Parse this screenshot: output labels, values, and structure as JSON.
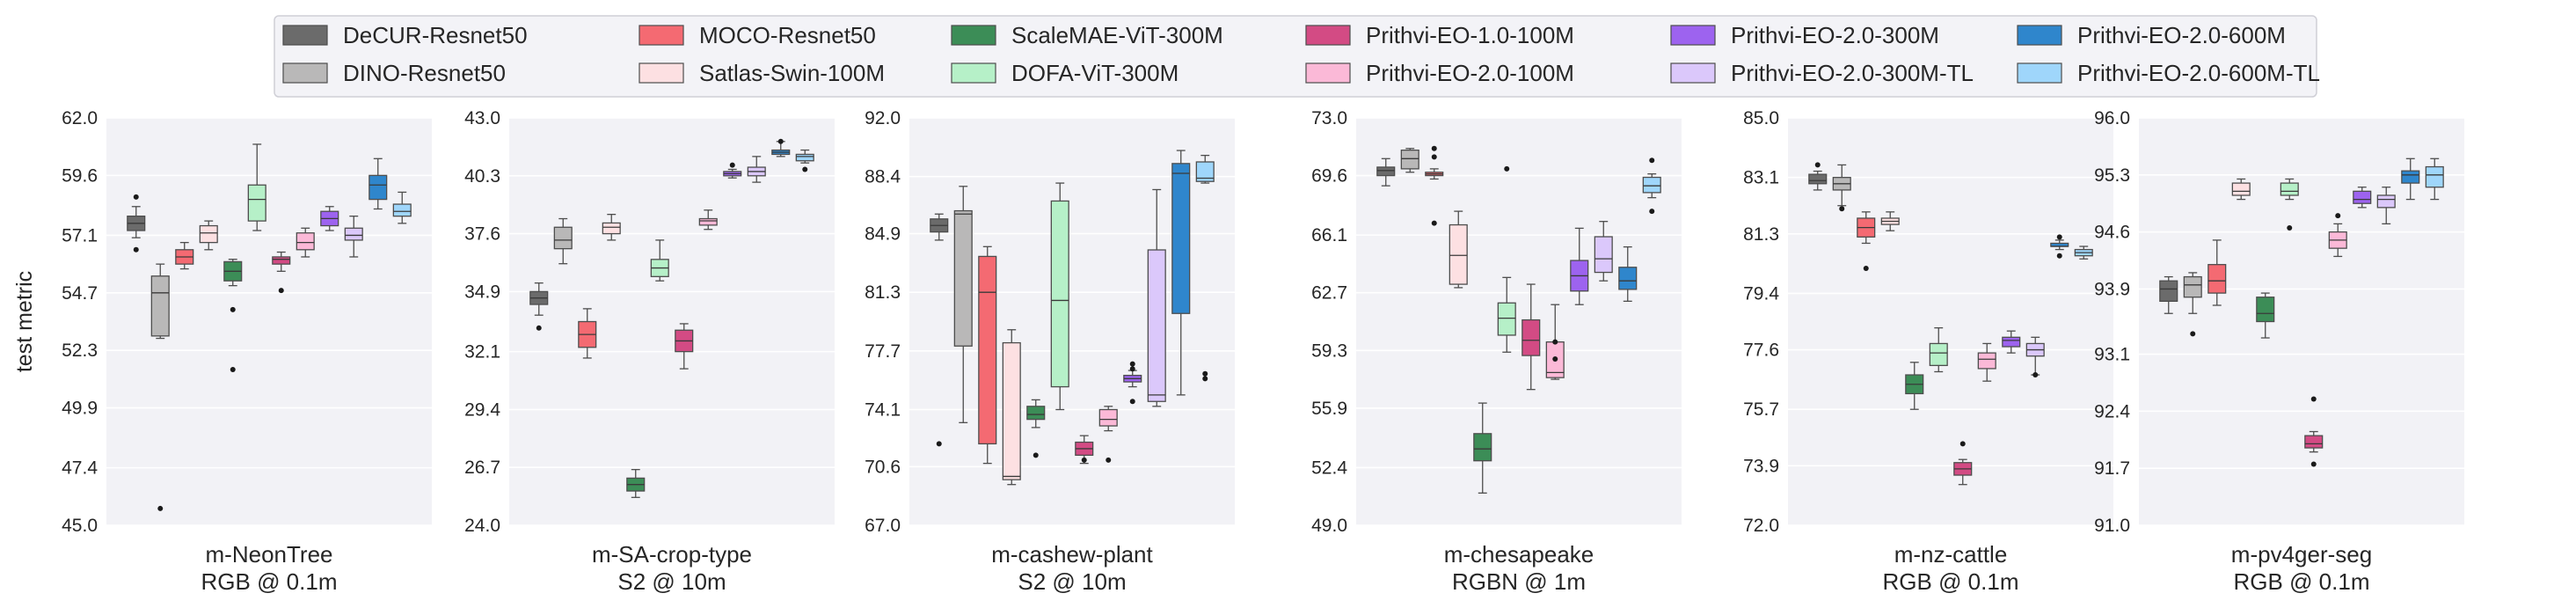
{
  "chart_data": {
    "type": "box",
    "ylabel": "test metric",
    "legend_position": "top-center",
    "series": [
      {
        "name": "DeCUR-Resnet50",
        "color": "#6b6b6b"
      },
      {
        "name": "DINO-Resnet50",
        "color": "#b9b8b8"
      },
      {
        "name": "MOCO-Resnet50",
        "color": "#f46a72"
      },
      {
        "name": "Satlas-Swin-100M",
        "color": "#fde0e2"
      },
      {
        "name": "ScaleMAE-ViT-300M",
        "color": "#3c8d57"
      },
      {
        "name": "DOFA-ViT-300M",
        "color": "#b6f0c8"
      },
      {
        "name": "Prithvi-EO-1.0-100M",
        "color": "#d34b84"
      },
      {
        "name": "Prithvi-EO-2.0-100M",
        "color": "#fbb9d7"
      },
      {
        "name": "Prithvi-EO-2.0-300M",
        "color": "#9d63ef"
      },
      {
        "name": "Prithvi-EO-2.0-300M-TL",
        "color": "#dbc8fb"
      },
      {
        "name": "Prithvi-EO-2.0-600M",
        "color": "#2f86cc"
      },
      {
        "name": "Prithvi-EO-2.0-600M-TL",
        "color": "#9fd6fb"
      }
    ],
    "panels": [
      {
        "title": "m-NeonTree",
        "subtitle": "RGB @ 0.1m",
        "ylim": [
          45.0,
          62.0
        ],
        "yticks": [
          "45.0",
          "47.4",
          "49.9",
          "52.3",
          "54.7",
          "57.1",
          "59.6",
          "62.0"
        ],
        "boxes": [
          {
            "min": 57.0,
            "q1": 57.3,
            "median": 57.6,
            "q3": 57.9,
            "max": 58.3,
            "outliers": [
              58.7,
              56.5
            ]
          },
          {
            "min": 52.8,
            "q1": 52.9,
            "median": 54.7,
            "q3": 55.4,
            "max": 55.9,
            "outliers": [
              45.7
            ]
          },
          {
            "min": 55.7,
            "q1": 55.9,
            "median": 56.2,
            "q3": 56.5,
            "max": 56.8,
            "outliers": []
          },
          {
            "min": 56.5,
            "q1": 56.8,
            "median": 57.2,
            "q3": 57.5,
            "max": 57.7,
            "outliers": []
          },
          {
            "min": 55.0,
            "q1": 55.2,
            "median": 55.6,
            "q3": 56.0,
            "max": 56.1,
            "outliers": [
              54.0,
              51.5
            ]
          },
          {
            "min": 57.3,
            "q1": 57.7,
            "median": 58.6,
            "q3": 59.2,
            "max": 60.9,
            "outliers": []
          },
          {
            "min": 55.6,
            "q1": 55.9,
            "median": 56.1,
            "q3": 56.2,
            "max": 56.4,
            "outliers": [
              54.8
            ]
          },
          {
            "min": 56.2,
            "q1": 56.5,
            "median": 56.8,
            "q3": 57.2,
            "max": 57.4,
            "outliers": []
          },
          {
            "min": 57.3,
            "q1": 57.5,
            "median": 57.8,
            "q3": 58.1,
            "max": 58.3,
            "outliers": []
          },
          {
            "min": 56.2,
            "q1": 56.9,
            "median": 57.1,
            "q3": 57.4,
            "max": 57.9,
            "outliers": []
          },
          {
            "min": 58.2,
            "q1": 58.6,
            "median": 59.2,
            "q3": 59.6,
            "max": 60.3,
            "outliers": []
          },
          {
            "min": 57.6,
            "q1": 57.9,
            "median": 58.1,
            "q3": 58.4,
            "max": 58.9,
            "outliers": []
          }
        ]
      },
      {
        "title": "m-SA-crop-type",
        "subtitle": "S2 @ 10m",
        "ylim": [
          24.0,
          43.0
        ],
        "yticks": [
          "24.0",
          "26.7",
          "29.4",
          "32.1",
          "34.9",
          "37.6",
          "40.3",
          "43.0"
        ],
        "boxes": [
          {
            "min": 33.8,
            "q1": 34.3,
            "median": 34.6,
            "q3": 34.9,
            "max": 35.3,
            "outliers": [
              33.2
            ]
          },
          {
            "min": 36.2,
            "q1": 36.9,
            "median": 37.3,
            "q3": 37.9,
            "max": 38.3,
            "outliers": []
          },
          {
            "min": 31.8,
            "q1": 32.3,
            "median": 32.9,
            "q3": 33.5,
            "max": 34.1,
            "outliers": []
          },
          {
            "min": 37.3,
            "q1": 37.6,
            "median": 37.9,
            "q3": 38.1,
            "max": 38.5,
            "outliers": []
          },
          {
            "min": 25.3,
            "q1": 25.6,
            "median": 25.9,
            "q3": 26.2,
            "max": 26.6,
            "outliers": []
          },
          {
            "min": 35.4,
            "q1": 35.6,
            "median": 36.0,
            "q3": 36.4,
            "max": 37.3,
            "outliers": []
          },
          {
            "min": 31.3,
            "q1": 32.1,
            "median": 32.6,
            "q3": 33.1,
            "max": 33.4,
            "outliers": []
          },
          {
            "min": 37.8,
            "q1": 38.0,
            "median": 38.2,
            "q3": 38.3,
            "max": 38.7,
            "outliers": []
          },
          {
            "min": 40.2,
            "q1": 40.3,
            "median": 40.4,
            "q3": 40.5,
            "max": 40.6,
            "outliers": [
              40.8
            ]
          },
          {
            "min": 40.0,
            "q1": 40.3,
            "median": 40.5,
            "q3": 40.7,
            "max": 41.2,
            "outliers": []
          },
          {
            "min": 41.2,
            "q1": 41.3,
            "median": 41.4,
            "q3": 41.5,
            "max": 41.9,
            "outliers": [
              41.9
            ]
          },
          {
            "min": 40.9,
            "q1": 41.0,
            "median": 41.2,
            "q3": 41.3,
            "max": 41.5,
            "outliers": [
              40.6
            ]
          }
        ]
      },
      {
        "title": "m-cashew-plant",
        "subtitle": "S2 @ 10m",
        "ylim": [
          67.0,
          92.0
        ],
        "yticks": [
          "67.0",
          "70.6",
          "74.1",
          "77.7",
          "81.3",
          "84.9",
          "88.4",
          "92.0"
        ],
        "boxes": [
          {
            "min": 84.5,
            "q1": 85.0,
            "median": 85.4,
            "q3": 85.8,
            "max": 86.1,
            "outliers": [
              72.0
            ]
          },
          {
            "min": 73.3,
            "q1": 78.0,
            "median": 86.1,
            "q3": 86.3,
            "max": 87.8,
            "outliers": []
          },
          {
            "min": 70.8,
            "q1": 72.0,
            "median": 81.3,
            "q3": 83.5,
            "max": 84.1,
            "outliers": []
          },
          {
            "min": 69.5,
            "q1": 69.8,
            "median": 70.0,
            "q3": 78.2,
            "max": 79.0,
            "outliers": []
          },
          {
            "min": 73.0,
            "q1": 73.5,
            "median": 73.8,
            "q3": 74.3,
            "max": 74.7,
            "outliers": [
              71.3
            ]
          },
          {
            "min": 74.1,
            "q1": 75.5,
            "median": 80.8,
            "q3": 86.9,
            "max": 88.0,
            "outliers": []
          },
          {
            "min": 70.8,
            "q1": 71.3,
            "median": 71.7,
            "q3": 72.1,
            "max": 72.5,
            "outliers": [
              71.0
            ]
          },
          {
            "min": 72.8,
            "q1": 73.1,
            "median": 73.5,
            "q3": 74.1,
            "max": 74.3,
            "outliers": [
              71.0
            ]
          },
          {
            "min": 75.5,
            "q1": 75.8,
            "median": 76.0,
            "q3": 76.2,
            "max": 76.5,
            "outliers": [
              74.6,
              76.9,
              76.6
            ]
          },
          {
            "min": 74.3,
            "q1": 74.6,
            "median": 75.0,
            "q3": 83.9,
            "max": 87.6,
            "outliers": []
          },
          {
            "min": 75.0,
            "q1": 80.0,
            "median": 88.6,
            "q3": 89.2,
            "max": 90.0,
            "outliers": []
          },
          {
            "min": 88.0,
            "q1": 88.1,
            "median": 88.3,
            "q3": 89.3,
            "max": 89.7,
            "outliers": [
              76.3,
              76.0
            ]
          }
        ]
      },
      {
        "title": "m-chesapeake",
        "subtitle": "RGBN @ 1m",
        "ylim": [
          49.0,
          73.0
        ],
        "yticks": [
          "49.0",
          "52.4",
          "55.9",
          "59.3",
          "62.7",
          "66.1",
          "69.6",
          "73.0"
        ],
        "boxes": [
          {
            "min": 69.0,
            "q1": 69.6,
            "median": 69.9,
            "q3": 70.1,
            "max": 70.6,
            "outliers": []
          },
          {
            "min": 69.8,
            "q1": 70.0,
            "median": 70.6,
            "q3": 71.1,
            "max": 71.2,
            "outliers": []
          },
          {
            "min": 69.4,
            "q1": 69.6,
            "median": 69.7,
            "q3": 69.8,
            "max": 70.0,
            "outliers": [
              71.2,
              70.7,
              66.8
            ]
          },
          {
            "min": 63.0,
            "q1": 63.2,
            "median": 64.9,
            "q3": 66.7,
            "max": 67.5,
            "outliers": []
          },
          {
            "min": 50.9,
            "q1": 52.8,
            "median": 53.5,
            "q3": 54.4,
            "max": 56.2,
            "outliers": []
          },
          {
            "min": 59.2,
            "q1": 60.2,
            "median": 61.2,
            "q3": 62.1,
            "max": 63.6,
            "outliers": [
              70.0
            ]
          },
          {
            "min": 57.0,
            "q1": 59.0,
            "median": 59.9,
            "q3": 61.1,
            "max": 63.2,
            "outliers": []
          },
          {
            "min": 57.6,
            "q1": 57.7,
            "median": 58.0,
            "q3": 59.8,
            "max": 62.0,
            "outliers": [
              59.8,
              58.8
            ]
          },
          {
            "min": 62.0,
            "q1": 62.8,
            "median": 63.7,
            "q3": 64.6,
            "max": 66.5,
            "outliers": []
          },
          {
            "min": 63.4,
            "q1": 63.9,
            "median": 64.7,
            "q3": 66.0,
            "max": 66.9,
            "outliers": []
          },
          {
            "min": 62.2,
            "q1": 62.9,
            "median": 63.4,
            "q3": 64.2,
            "max": 65.4,
            "outliers": []
          },
          {
            "min": 68.3,
            "q1": 68.6,
            "median": 69.0,
            "q3": 69.5,
            "max": 69.7,
            "outliers": [
              70.5,
              67.5
            ]
          }
        ]
      },
      {
        "title": "m-nz-cattle",
        "subtitle": "RGB @ 0.1m",
        "ylim": [
          72.0,
          85.0
        ],
        "yticks": [
          "72.0",
          "73.9",
          "75.7",
          "77.6",
          "79.4",
          "81.3",
          "83.1",
          "85.0"
        ],
        "boxes": [
          {
            "min": 82.7,
            "q1": 82.9,
            "median": 83.0,
            "q3": 83.2,
            "max": 83.3,
            "outliers": [
              83.5
            ]
          },
          {
            "min": 82.2,
            "q1": 82.7,
            "median": 82.9,
            "q3": 83.1,
            "max": 83.5,
            "outliers": [
              82.1
            ]
          },
          {
            "min": 81.0,
            "q1": 81.2,
            "median": 81.5,
            "q3": 81.8,
            "max": 82.0,
            "outliers": [
              80.2
            ]
          },
          {
            "min": 81.4,
            "q1": 81.6,
            "median": 81.7,
            "q3": 81.8,
            "max": 82.0,
            "outliers": []
          },
          {
            "min": 75.7,
            "q1": 76.2,
            "median": 76.5,
            "q3": 76.8,
            "max": 77.2,
            "outliers": []
          },
          {
            "min": 76.9,
            "q1": 77.1,
            "median": 77.5,
            "q3": 77.8,
            "max": 78.3,
            "outliers": []
          },
          {
            "min": 73.3,
            "q1": 73.6,
            "median": 73.8,
            "q3": 74.0,
            "max": 74.1,
            "outliers": [
              74.6
            ]
          },
          {
            "min": 76.6,
            "q1": 77.0,
            "median": 77.3,
            "q3": 77.5,
            "max": 77.8,
            "outliers": []
          },
          {
            "min": 77.5,
            "q1": 77.7,
            "median": 77.9,
            "q3": 78.0,
            "max": 78.2,
            "outliers": []
          },
          {
            "min": 76.8,
            "q1": 77.4,
            "median": 77.6,
            "q3": 77.8,
            "max": 78.0,
            "outliers": [
              76.8
            ]
          },
          {
            "min": 80.8,
            "q1": 80.9,
            "median": 80.9,
            "q3": 81.0,
            "max": 81.1,
            "outliers": [
              81.2,
              80.6
            ]
          },
          {
            "min": 80.5,
            "q1": 80.6,
            "median": 80.7,
            "q3": 80.8,
            "max": 80.9,
            "outliers": []
          }
        ]
      },
      {
        "title": "m-pv4ger-seg",
        "subtitle": "RGB @ 0.1m",
        "ylim": [
          91.0,
          96.0
        ],
        "yticks": [
          "91.0",
          "91.7",
          "92.4",
          "93.1",
          "93.9",
          "94.6",
          "95.3",
          "96.0"
        ],
        "boxes": [
          {
            "min": 93.6,
            "q1": 93.75,
            "median": 93.9,
            "q3": 94.0,
            "max": 94.05,
            "outliers": []
          },
          {
            "min": 93.6,
            "q1": 93.8,
            "median": 93.95,
            "q3": 94.05,
            "max": 94.1,
            "outliers": [
              93.35
            ]
          },
          {
            "min": 93.7,
            "q1": 93.85,
            "median": 94.0,
            "q3": 94.2,
            "max": 94.5,
            "outliers": []
          },
          {
            "min": 95.0,
            "q1": 95.05,
            "median": 95.1,
            "q3": 95.2,
            "max": 95.25,
            "outliers": []
          },
          {
            "min": 93.3,
            "q1": 93.5,
            "median": 93.6,
            "q3": 93.8,
            "max": 93.85,
            "outliers": []
          },
          {
            "min": 95.0,
            "q1": 95.05,
            "median": 95.1,
            "q3": 95.2,
            "max": 95.25,
            "outliers": [
              94.65
            ]
          },
          {
            "min": 91.9,
            "q1": 91.95,
            "median": 92.0,
            "q3": 92.1,
            "max": 92.15,
            "outliers": [
              92.55,
              91.75
            ]
          },
          {
            "min": 94.3,
            "q1": 94.4,
            "median": 94.5,
            "q3": 94.6,
            "max": 94.7,
            "outliers": [
              94.8
            ]
          },
          {
            "min": 94.9,
            "q1": 94.95,
            "median": 95.0,
            "q3": 95.1,
            "max": 95.15,
            "outliers": []
          },
          {
            "min": 94.7,
            "q1": 94.9,
            "median": 95.0,
            "q3": 95.05,
            "max": 95.15,
            "outliers": []
          },
          {
            "min": 95.0,
            "q1": 95.2,
            "median": 95.3,
            "q3": 95.35,
            "max": 95.5,
            "outliers": []
          },
          {
            "min": 95.0,
            "q1": 95.15,
            "median": 95.3,
            "q3": 95.4,
            "max": 95.5,
            "outliers": []
          }
        ]
      }
    ]
  }
}
